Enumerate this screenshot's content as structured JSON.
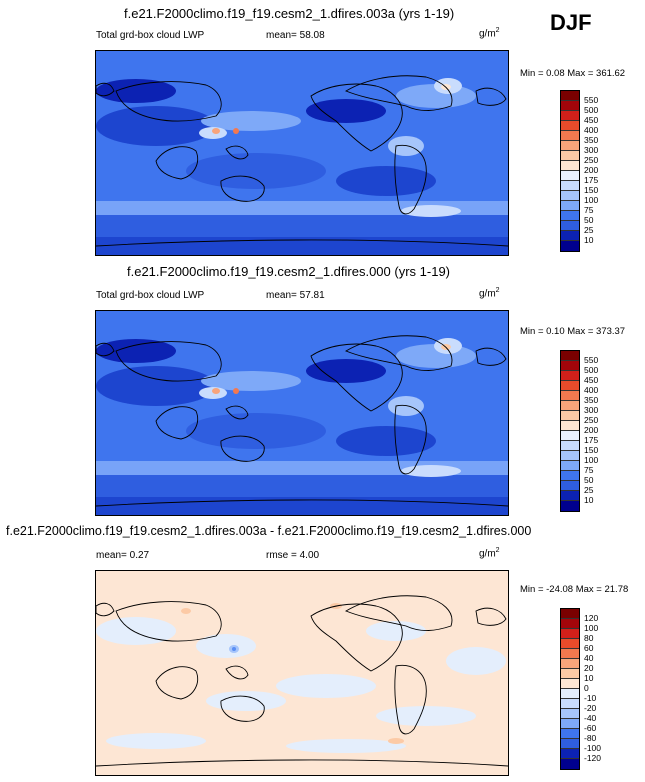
{
  "season": "DJF",
  "colors": {
    "lwp_scale": [
      "#00008e",
      "#0c22b3",
      "#1d45cf",
      "#2f5ee0",
      "#3f75ee",
      "#5a8ff5",
      "#7ea9f8",
      "#a6c5fb",
      "#c9dcfd",
      "#eaf1ff",
      "#fde6d4",
      "#fccaa6",
      "#f8a47b",
      "#f2784f",
      "#e84b2b",
      "#d1201a",
      "#a3050a",
      "#7a0000"
    ],
    "diff_scale": [
      "#00008e",
      "#0c22b3",
      "#1d45cf",
      "#2f5ee0",
      "#3f75ee",
      "#5a8ff5",
      "#7ea9f8",
      "#a6c5fb",
      "#c9dcfd",
      "#e4eefc",
      "#fde6d4",
      "#fccaa6",
      "#f8a47b",
      "#f2784f",
      "#e84b2b",
      "#d1201a",
      "#a3050a",
      "#7a0000"
    ]
  },
  "panels": [
    {
      "title": "f.e21.F2000climo.f19_f19.cesm2_1.dfires.003a (yrs 1-19)",
      "variable": "Total grd-box cloud LWP",
      "mean_label": "mean=",
      "mean_value": "58.08",
      "units": "g/m",
      "units_exp": "2",
      "minmax": "Min =   0.08 Max = 361.62",
      "colorbar_labels": [
        "550",
        "500",
        "450",
        "400",
        "350",
        "300",
        "250",
        "200",
        "175",
        "150",
        "100",
        "75",
        "50",
        "25",
        "10"
      ]
    },
    {
      "title": "f.e21.F2000climo.f19_f19.cesm2_1.dfires.000 (yrs 1-19)",
      "variable": "Total grd-box cloud LWP",
      "mean_label": "mean=",
      "mean_value": "57.81",
      "units": "g/m",
      "units_exp": "2",
      "minmax": "Min =   0.10 Max = 373.37",
      "colorbar_labels": [
        "550",
        "500",
        "450",
        "400",
        "350",
        "300",
        "250",
        "200",
        "175",
        "150",
        "100",
        "75",
        "50",
        "25",
        "10"
      ]
    },
    {
      "title": "f.e21.F2000climo.f19_f19.cesm2_1.dfires.003a - f.e21.F2000climo.f19_f19.cesm2_1.dfires.000",
      "mean_label": "mean=",
      "mean_value": "0.27",
      "rmse_label": "rmse =",
      "rmse_value": "4.00",
      "units": "g/m",
      "units_exp": "2",
      "minmax": "Min = -24.08 Max =  21.78",
      "colorbar_labels": [
        "120",
        "100",
        "80",
        "60",
        "40",
        "20",
        "10",
        "0",
        "-10",
        "-20",
        "-40",
        "-60",
        "-80",
        "-100",
        "-120"
      ]
    }
  ]
}
